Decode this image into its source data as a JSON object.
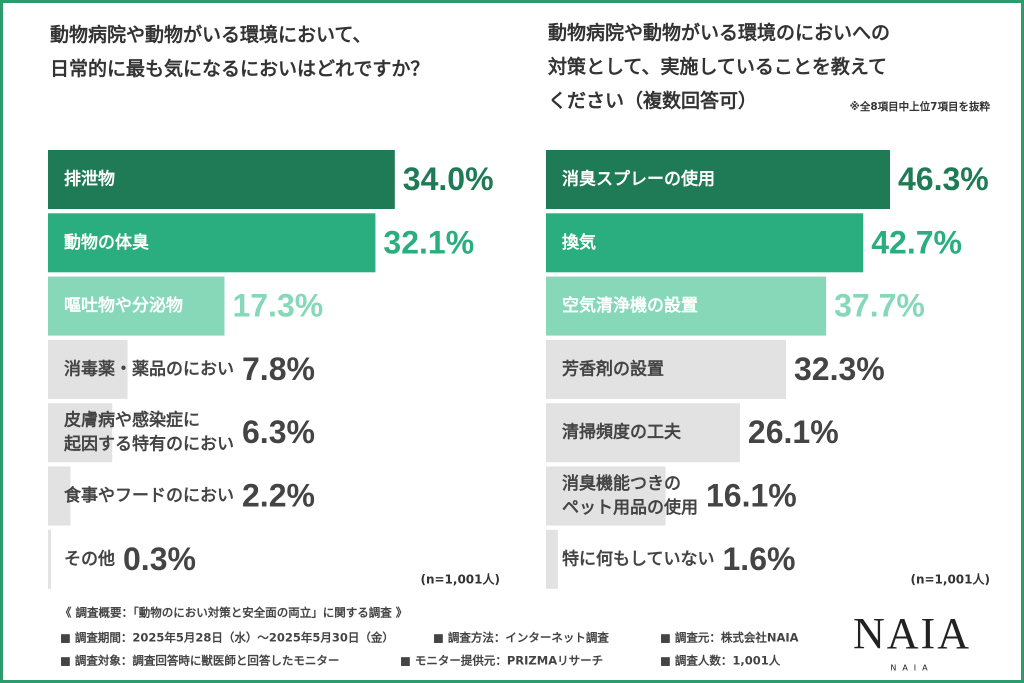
{
  "chart_data": [
    {
      "type": "bar",
      "title": "動物病院や動物がいる環境において、\n日常的に最も気になるにおいはどれですか？",
      "categories": [
        "排泄物",
        "動物の体臭",
        "嘔吐物や分泌物",
        "消毒薬・薬品のにおい",
        "皮膚病や感染症に\n起因する特有のにおい",
        "食事やフードのにおい",
        "その他"
      ],
      "values": [
        34.0,
        32.1,
        17.3,
        7.8,
        6.3,
        2.2,
        0.3
      ],
      "value_labels": [
        "34.0%",
        "32.1%",
        "17.3%",
        "7.8%",
        "6.3%",
        "2.2%",
        "0.3%"
      ],
      "colors": [
        "#1f7a56",
        "#2bae7f",
        "#86d8b8",
        "#e2e2e2",
        "#e2e2e2",
        "#e2e2e2",
        "#e2e2e2"
      ],
      "value_label_colors": [
        "#1f7a56",
        "#2bae7f",
        "#86d8b8",
        "#444444",
        "#444444",
        "#444444",
        "#444444"
      ],
      "note": "(n=1,001人)"
    },
    {
      "type": "bar",
      "title": "動物病院や動物がいる環境のにおいへの\n対策として、実施していることを教えて\nください（複数回答可）",
      "subtitle": "※全8項目中上位7項目を抜粋",
      "categories": [
        "消臭スプレーの使用",
        "換気",
        "空気清浄機の設置",
        "芳香剤の設置",
        "清掃頻度の工夫",
        "消臭機能つきの\nペット用品の使用",
        "特に何もしていない"
      ],
      "values": [
        46.3,
        42.7,
        37.7,
        32.3,
        26.1,
        16.1,
        1.6
      ],
      "value_labels": [
        "46.3%",
        "42.7%",
        "37.7%",
        "32.3%",
        "26.1%",
        "16.1%",
        "1.6%"
      ],
      "colors": [
        "#1f7a56",
        "#2bae7f",
        "#86d8b8",
        "#e2e2e2",
        "#e2e2e2",
        "#e2e2e2",
        "#e2e2e2"
      ],
      "value_label_colors": [
        "#1f7a56",
        "#2bae7f",
        "#86d8b8",
        "#444444",
        "#444444",
        "#444444",
        "#444444"
      ],
      "note": "(n=1,001人)"
    }
  ],
  "footer": {
    "heading": "《 調査概要：「動物のにおい対策と安全面の両立」に関する調査 》",
    "items": [
      [
        "■ 調査期間：2025年5月28日（水）～2025年5月30日（金）",
        "■ 調査方法：インターネット調査",
        "■ 調査元：株式会社NAIA"
      ],
      [
        "■ 調査対象：調査回答時に獣医師と回答したモニター",
        "■ モニター提供元：PRIZMAリサーチ",
        "■ 調査人数：1,001人"
      ]
    ],
    "logo": "NAIA"
  }
}
